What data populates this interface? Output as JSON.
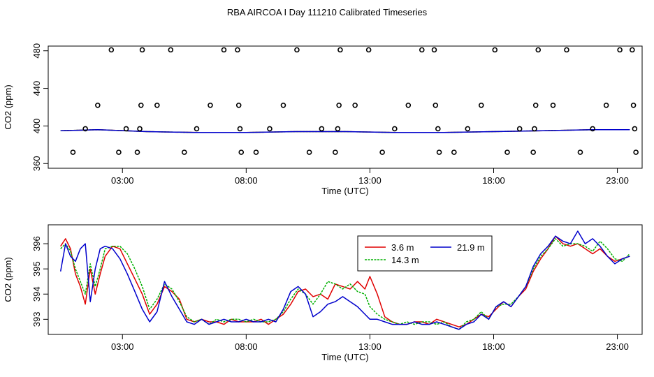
{
  "title": "RBA AIRCOA I  Day 111210  Calibrated Timeseries",
  "colors": {
    "h36": "#e00000",
    "h143": "#00b000",
    "h219": "#0000cc",
    "points": "#000000"
  },
  "chart_data": [
    {
      "type": "scatter",
      "xlabel": "Time (UTC)",
      "ylabel": "CO2 (ppm)",
      "xlim": [
        0,
        24
      ],
      "ylim": [
        355,
        485
      ],
      "xticks": [
        {
          "v": 3,
          "label": "03:00"
        },
        {
          "v": 8,
          "label": "08:00"
        },
        {
          "v": 13,
          "label": "13:00"
        },
        {
          "v": 18,
          "label": "18:00"
        },
        {
          "v": 23,
          "label": "23:00"
        }
      ],
      "yticks": [
        {
          "v": 360,
          "label": "360"
        },
        {
          "v": 400,
          "label": "400"
        },
        {
          "v": 440,
          "label": "440"
        },
        {
          "v": 480,
          "label": "480"
        }
      ],
      "grid": false,
      "calibration_points": [
        {
          "x": 1.0,
          "y": 372
        },
        {
          "x": 1.5,
          "y": 397
        },
        {
          "x": 2.0,
          "y": 422
        },
        {
          "x": 2.55,
          "y": 481
        },
        {
          "x": 2.85,
          "y": 372
        },
        {
          "x": 3.15,
          "y": 397
        },
        {
          "x": 3.6,
          "y": 372
        },
        {
          "x": 3.7,
          "y": 397
        },
        {
          "x": 3.75,
          "y": 422
        },
        {
          "x": 3.8,
          "y": 481
        },
        {
          "x": 4.4,
          "y": 422
        },
        {
          "x": 4.95,
          "y": 481
        },
        {
          "x": 5.5,
          "y": 372
        },
        {
          "x": 6.0,
          "y": 397
        },
        {
          "x": 6.55,
          "y": 422
        },
        {
          "x": 7.1,
          "y": 481
        },
        {
          "x": 7.65,
          "y": 481
        },
        {
          "x": 7.7,
          "y": 422
        },
        {
          "x": 7.75,
          "y": 397
        },
        {
          "x": 7.8,
          "y": 372
        },
        {
          "x": 8.4,
          "y": 372
        },
        {
          "x": 8.95,
          "y": 397
        },
        {
          "x": 9.5,
          "y": 422
        },
        {
          "x": 10.05,
          "y": 481
        },
        {
          "x": 10.55,
          "y": 372
        },
        {
          "x": 11.05,
          "y": 397
        },
        {
          "x": 11.6,
          "y": 372
        },
        {
          "x": 11.7,
          "y": 397
        },
        {
          "x": 11.75,
          "y": 422
        },
        {
          "x": 11.8,
          "y": 481
        },
        {
          "x": 12.4,
          "y": 422
        },
        {
          "x": 12.95,
          "y": 481
        },
        {
          "x": 13.5,
          "y": 372
        },
        {
          "x": 14.0,
          "y": 397
        },
        {
          "x": 14.55,
          "y": 422
        },
        {
          "x": 15.1,
          "y": 481
        },
        {
          "x": 15.6,
          "y": 481
        },
        {
          "x": 15.65,
          "y": 422
        },
        {
          "x": 15.75,
          "y": 397
        },
        {
          "x": 15.8,
          "y": 372
        },
        {
          "x": 16.4,
          "y": 372
        },
        {
          "x": 16.95,
          "y": 397
        },
        {
          "x": 17.5,
          "y": 422
        },
        {
          "x": 18.05,
          "y": 481
        },
        {
          "x": 18.55,
          "y": 372
        },
        {
          "x": 19.05,
          "y": 397
        },
        {
          "x": 19.6,
          "y": 372
        },
        {
          "x": 19.65,
          "y": 397
        },
        {
          "x": 19.7,
          "y": 422
        },
        {
          "x": 19.8,
          "y": 481
        },
        {
          "x": 20.4,
          "y": 422
        },
        {
          "x": 20.95,
          "y": 481
        },
        {
          "x": 21.5,
          "y": 372
        },
        {
          "x": 22.0,
          "y": 397
        },
        {
          "x": 22.55,
          "y": 422
        },
        {
          "x": 23.1,
          "y": 481
        },
        {
          "x": 23.6,
          "y": 481
        },
        {
          "x": 23.65,
          "y": 422
        },
        {
          "x": 23.7,
          "y": 397
        },
        {
          "x": 23.75,
          "y": 372
        }
      ],
      "series": [
        {
          "name": "3.6 m",
          "color": "#e00000",
          "x": [
            0.5,
            2,
            4,
            6,
            8,
            10,
            12,
            14,
            16,
            18,
            20,
            22,
            23.5
          ],
          "y": [
            395,
            396,
            394,
            393,
            393,
            394,
            394,
            393,
            393,
            394,
            395,
            396,
            396
          ]
        },
        {
          "name": "14.3 m",
          "color": "#00b000",
          "x": [
            0.5,
            2,
            4,
            6,
            8,
            10,
            12,
            14,
            16,
            18,
            20,
            22,
            23.5
          ],
          "y": [
            395,
            396,
            394,
            393,
            393,
            394,
            394,
            393,
            393,
            394,
            395,
            396,
            396
          ]
        },
        {
          "name": "21.9 m",
          "color": "#0000cc",
          "x": [
            0.5,
            2,
            4,
            6,
            8,
            10,
            12,
            14,
            16,
            18,
            20,
            22,
            23.5
          ],
          "y": [
            395,
            396,
            394,
            393,
            393,
            394,
            394,
            393,
            393,
            394,
            395,
            396,
            396
          ]
        }
      ]
    },
    {
      "type": "line",
      "xlabel": "Time (UTC)",
      "ylabel": "CO2 (ppm)",
      "xlim": [
        0,
        24
      ],
      "ylim": [
        392.4,
        396.75
      ],
      "xticks": [
        {
          "v": 3,
          "label": "03:00"
        },
        {
          "v": 8,
          "label": "08:00"
        },
        {
          "v": 13,
          "label": "13:00"
        },
        {
          "v": 18,
          "label": "18:00"
        },
        {
          "v": 23,
          "label": "23:00"
        }
      ],
      "yticks": [
        {
          "v": 393,
          "label": "393"
        },
        {
          "v": 394,
          "label": "394"
        },
        {
          "v": 395,
          "label": "395"
        },
        {
          "v": 396,
          "label": "396"
        }
      ],
      "grid": false,
      "legend": "top-right",
      "series": [
        {
          "name": "3.6 m",
          "color": "#e00000",
          "x": [
            0.5,
            0.7,
            0.9,
            1.1,
            1.3,
            1.5,
            1.7,
            1.9,
            2.1,
            2.3,
            2.6,
            2.9,
            3.2,
            3.5,
            3.8,
            4.1,
            4.4,
            4.7,
            5.0,
            5.3,
            5.6,
            5.9,
            6.2,
            6.5,
            6.8,
            7.1,
            7.4,
            7.7,
            8.0,
            8.3,
            8.6,
            8.9,
            9.2,
            9.5,
            9.8,
            10.1,
            10.4,
            10.7,
            11.0,
            11.3,
            11.6,
            11.9,
            12.2,
            12.5,
            12.8,
            13.0,
            13.3,
            13.6,
            13.9,
            14.2,
            14.5,
            14.8,
            15.1,
            15.4,
            15.7,
            16.0,
            16.3,
            16.6,
            16.9,
            17.2,
            17.5,
            17.8,
            18.1,
            18.4,
            18.7,
            19.0,
            19.3,
            19.6,
            19.9,
            20.2,
            20.5,
            20.8,
            21.1,
            21.4,
            21.7,
            22.0,
            22.3,
            22.6,
            22.9,
            23.2,
            23.5
          ],
          "y": [
            395.9,
            396.2,
            395.8,
            394.8,
            394.3,
            393.6,
            395.0,
            394.0,
            394.8,
            395.5,
            395.9,
            395.8,
            395.2,
            394.6,
            394.0,
            393.2,
            393.6,
            394.3,
            394.1,
            393.8,
            393.0,
            392.9,
            393.0,
            392.9,
            392.9,
            392.8,
            393.0,
            392.9,
            392.9,
            392.9,
            393.0,
            392.8,
            393.0,
            393.2,
            393.6,
            394.1,
            394.2,
            393.9,
            394.0,
            393.8,
            394.4,
            394.3,
            394.2,
            394.5,
            394.2,
            394.7,
            394.0,
            393.1,
            392.9,
            392.8,
            392.8,
            392.9,
            392.9,
            392.8,
            393.0,
            392.9,
            392.8,
            392.7,
            392.8,
            393.0,
            393.2,
            393.1,
            393.4,
            393.7,
            393.5,
            393.9,
            394.2,
            394.9,
            395.4,
            395.8,
            396.3,
            396.0,
            395.9,
            396.0,
            395.8,
            395.6,
            395.8,
            395.5,
            395.3,
            395.4,
            395.5
          ]
        },
        {
          "name": "14.3 m",
          "color": "#00b000",
          "x": [
            0.5,
            0.7,
            0.9,
            1.1,
            1.3,
            1.5,
            1.7,
            1.9,
            2.1,
            2.3,
            2.6,
            2.9,
            3.2,
            3.5,
            3.8,
            4.1,
            4.4,
            4.7,
            5.0,
            5.3,
            5.6,
            5.9,
            6.2,
            6.5,
            6.8,
            7.1,
            7.4,
            7.7,
            8.0,
            8.3,
            8.6,
            8.9,
            9.2,
            9.5,
            9.8,
            10.1,
            10.4,
            10.7,
            11.0,
            11.3,
            11.6,
            11.9,
            12.2,
            12.5,
            12.8,
            13.0,
            13.3,
            13.6,
            13.9,
            14.2,
            14.5,
            14.8,
            15.1,
            15.4,
            15.7,
            16.0,
            16.3,
            16.6,
            16.9,
            17.2,
            17.5,
            17.8,
            18.1,
            18.4,
            18.7,
            19.0,
            19.3,
            19.6,
            19.9,
            20.2,
            20.5,
            20.8,
            21.1,
            21.4,
            21.7,
            22.0,
            22.3,
            22.6,
            22.9,
            23.2,
            23.5
          ],
          "y": [
            395.8,
            396.0,
            395.7,
            395.0,
            394.5,
            394.0,
            395.2,
            394.3,
            395.0,
            395.8,
            395.9,
            395.9,
            395.6,
            395.0,
            394.3,
            393.4,
            393.8,
            394.4,
            394.2,
            393.7,
            393.1,
            392.9,
            393.0,
            392.8,
            393.0,
            392.9,
            393.0,
            393.0,
            392.9,
            393.0,
            392.9,
            392.9,
            393.0,
            393.3,
            393.8,
            394.2,
            394.0,
            393.6,
            394.0,
            394.5,
            394.4,
            394.2,
            394.4,
            394.1,
            394.0,
            393.5,
            393.2,
            393.0,
            392.9,
            392.8,
            392.9,
            392.8,
            392.9,
            392.9,
            392.8,
            392.9,
            392.7,
            392.6,
            392.9,
            393.0,
            393.3,
            393.0,
            393.5,
            393.6,
            393.6,
            393.9,
            394.3,
            395.0,
            395.5,
            395.8,
            396.2,
            395.9,
            396.0,
            396.0,
            395.9,
            395.7,
            396.1,
            395.8,
            395.4,
            395.3,
            395.6
          ]
        },
        {
          "name": "21.9 m",
          "color": "#0000cc",
          "x": [
            0.5,
            0.7,
            0.9,
            1.1,
            1.3,
            1.5,
            1.7,
            1.9,
            2.1,
            2.3,
            2.6,
            2.9,
            3.2,
            3.5,
            3.8,
            4.1,
            4.4,
            4.7,
            5.0,
            5.3,
            5.6,
            5.9,
            6.2,
            6.5,
            6.8,
            7.1,
            7.4,
            7.7,
            8.0,
            8.3,
            8.6,
            8.9,
            9.2,
            9.5,
            9.8,
            10.1,
            10.4,
            10.7,
            11.0,
            11.3,
            11.6,
            11.9,
            12.2,
            12.5,
            12.8,
            13.0,
            13.3,
            13.6,
            13.9,
            14.2,
            14.5,
            14.8,
            15.1,
            15.4,
            15.7,
            16.0,
            16.3,
            16.6,
            16.9,
            17.2,
            17.5,
            17.8,
            18.1,
            18.4,
            18.7,
            19.0,
            19.3,
            19.6,
            19.9,
            20.2,
            20.5,
            20.8,
            21.1,
            21.4,
            21.7,
            22.0,
            22.3,
            22.6,
            22.9,
            23.2,
            23.5
          ],
          "y": [
            394.9,
            396.0,
            395.5,
            395.3,
            395.8,
            396.0,
            393.7,
            395.0,
            395.8,
            395.9,
            395.8,
            395.4,
            394.8,
            394.1,
            393.4,
            392.9,
            393.3,
            394.5,
            393.9,
            393.4,
            392.9,
            392.8,
            393.0,
            392.8,
            392.9,
            393.0,
            392.9,
            392.9,
            393.0,
            392.9,
            392.9,
            393.0,
            392.9,
            393.4,
            394.1,
            394.3,
            394.0,
            393.1,
            393.3,
            393.6,
            393.7,
            393.9,
            393.7,
            393.5,
            393.2,
            393.0,
            393.0,
            392.9,
            392.8,
            392.8,
            392.8,
            392.9,
            392.8,
            392.8,
            392.9,
            392.8,
            392.7,
            392.6,
            392.8,
            392.9,
            393.2,
            393.0,
            393.5,
            393.7,
            393.5,
            393.9,
            394.3,
            395.1,
            395.6,
            395.9,
            396.3,
            396.1,
            396.0,
            396.5,
            396.0,
            396.2,
            395.9,
            395.5,
            395.2,
            395.4,
            395.5
          ]
        }
      ]
    }
  ]
}
